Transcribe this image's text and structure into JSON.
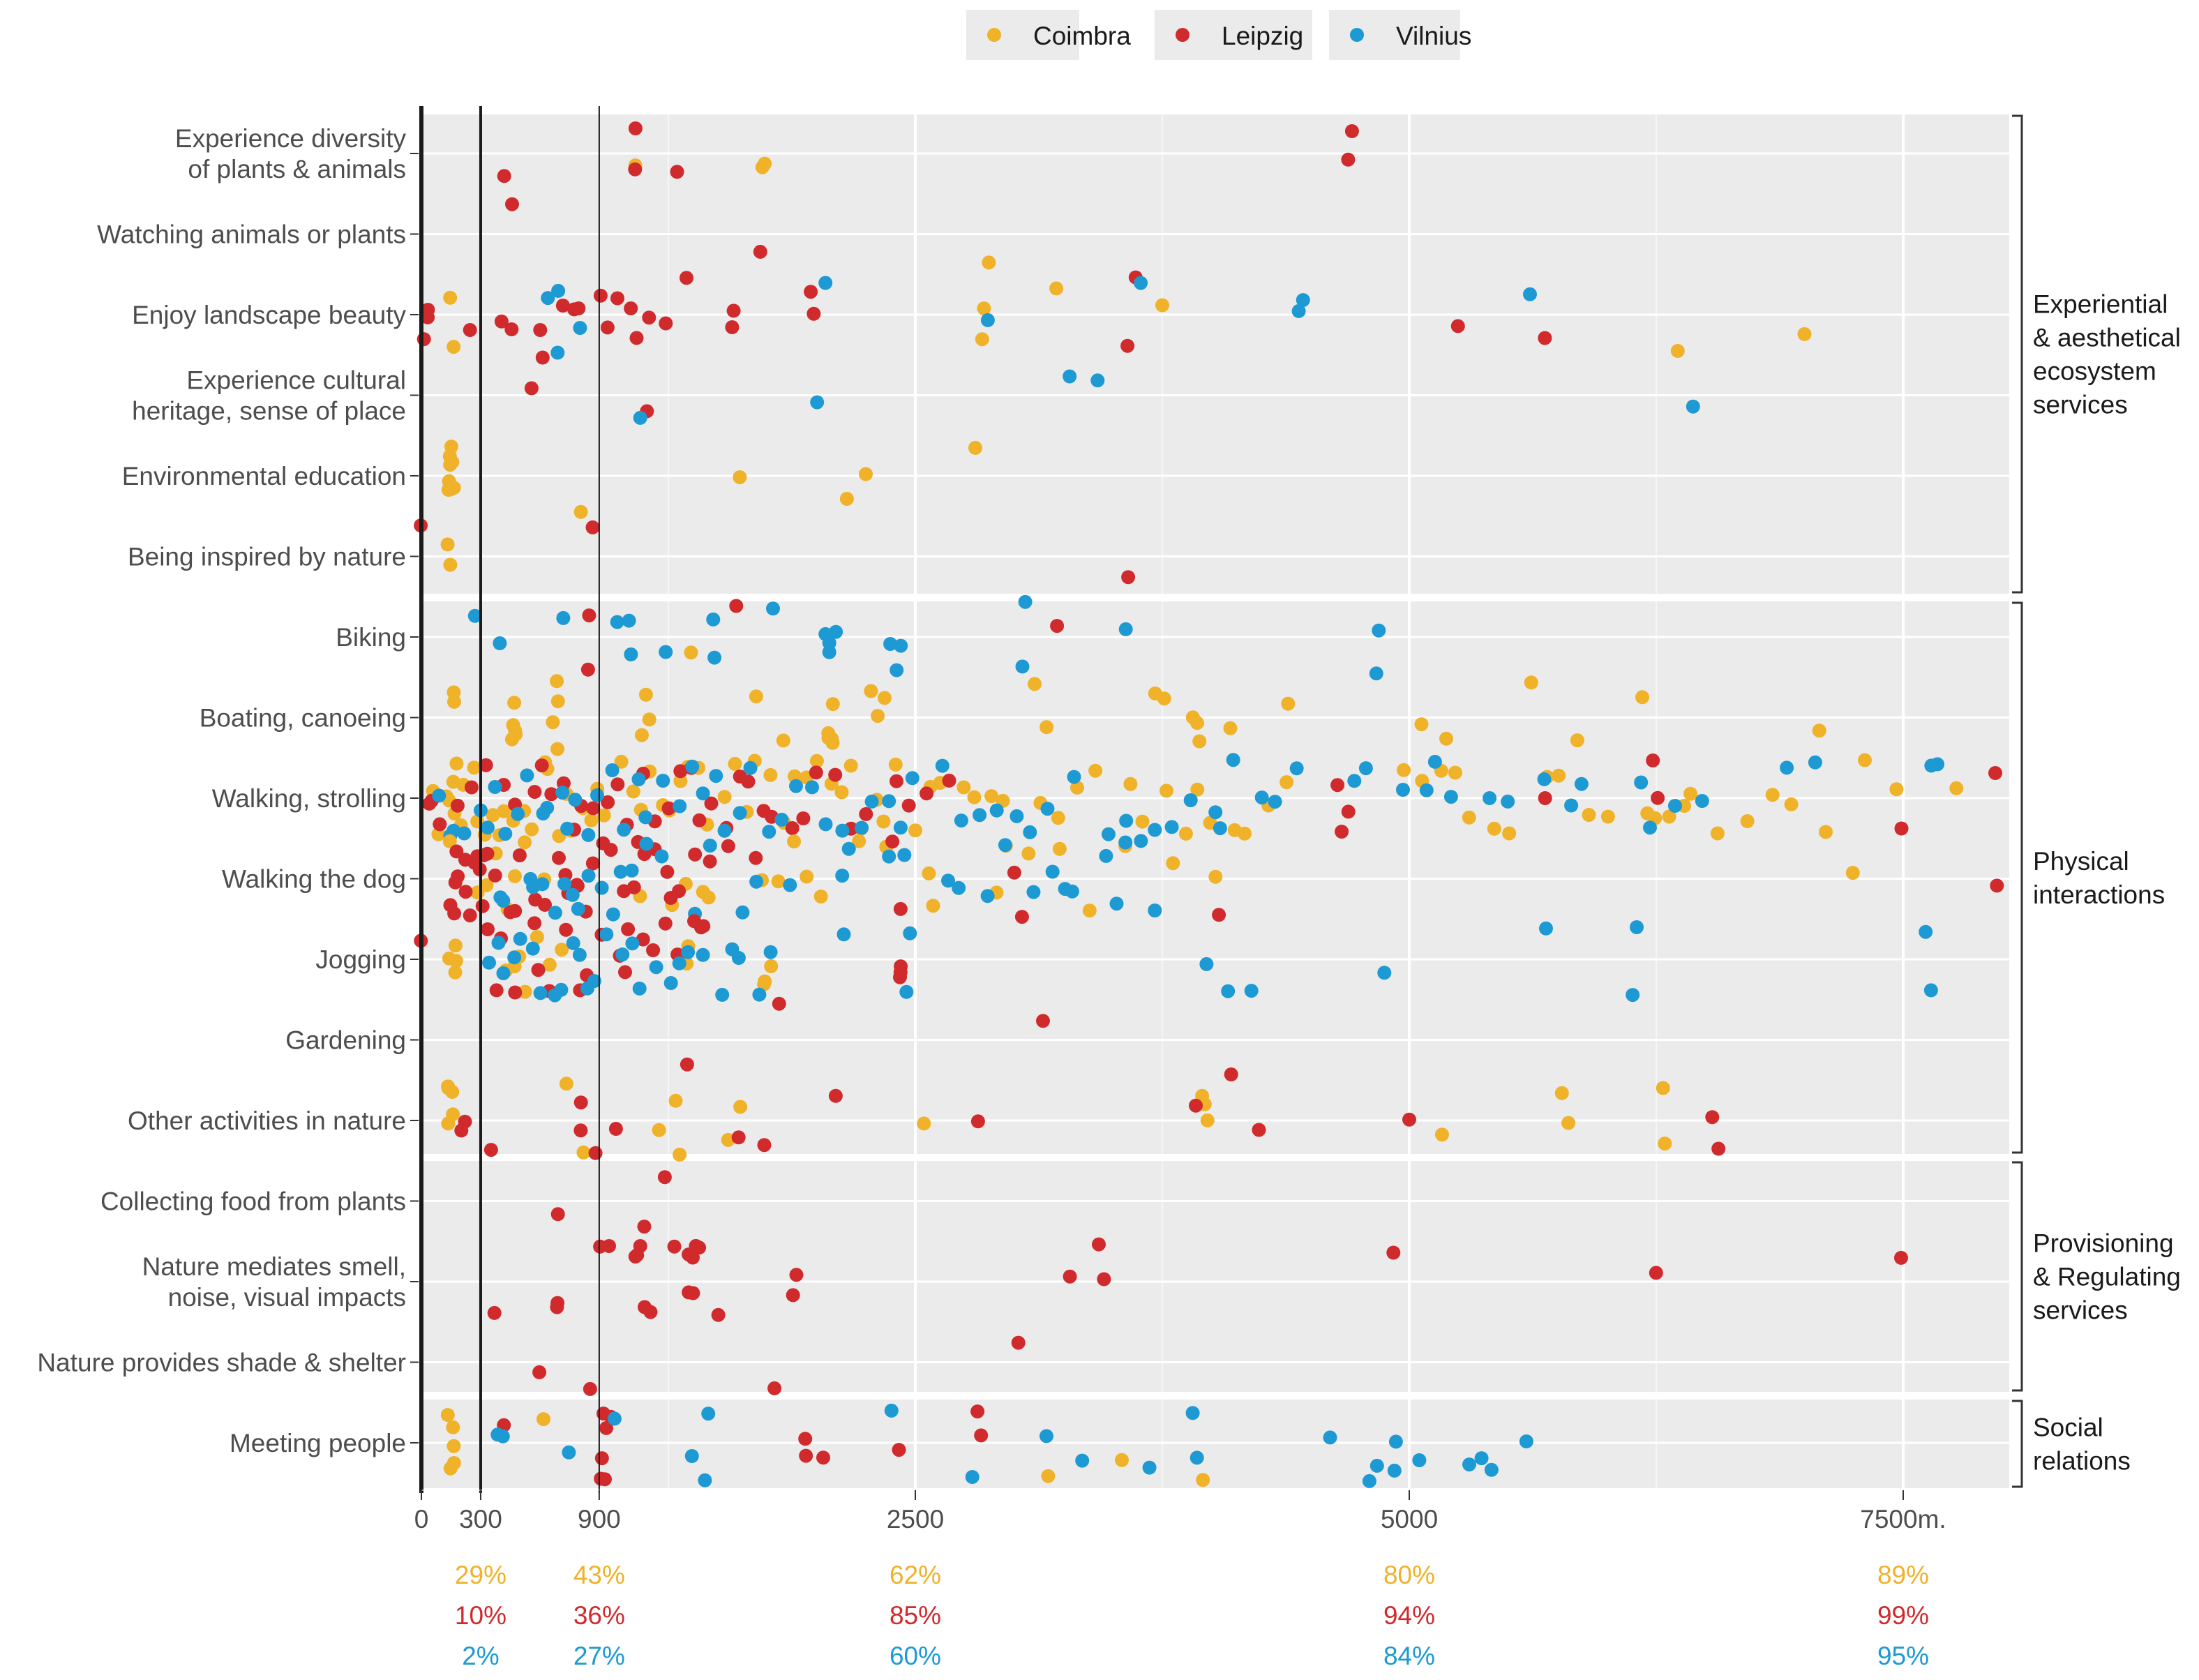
{
  "chart_data": {
    "type": "scatter",
    "x_unit_label": "m.",
    "xlim": [
      0,
      8000
    ],
    "x_ticks": [
      0,
      300,
      900,
      2500,
      5000,
      7500
    ],
    "x_tick_labels": [
      "0",
      "300",
      "900",
      "2500",
      "5000",
      "7500m."
    ],
    "reference_lines_x": [
      0,
      300,
      900
    ],
    "grid": true,
    "legend_position": "top",
    "series": [
      {
        "name": "Coimbra",
        "color": "#efb229"
      },
      {
        "name": "Leipzig",
        "color": "#d12a2d"
      },
      {
        "name": "Vilnius",
        "color": "#1d9ad3"
      }
    ],
    "categories": [
      {
        "label": "Experience diversity\nof plants & animals",
        "points": {
          "Coimbra": [
            1090,
            1720,
            1720
          ],
          "Leipzig": [
            1070,
            1070,
            1300,
            430,
            4700,
            4700
          ],
          "Vilnius": []
        }
      },
      {
        "label": "Watching animals or plants",
        "points": {
          "Coimbra": [
            2860
          ],
          "Leipzig": [
            460,
            1720
          ],
          "Vilnius": []
        }
      },
      {
        "label": "Enjoy landscape beauty",
        "points": {
          "Coimbra": [
            150,
            150,
            2850,
            2850,
            3220,
            3750,
            6360,
            7010
          ],
          "Leipzig": [
            20,
            20,
            20,
            260,
            420,
            460,
            610,
            720,
            780,
            790,
            920,
            960,
            1000,
            1070,
            1090,
            1140,
            1230,
            1340,
            1580,
            1580,
            1970,
            1970,
            3570,
            3610,
            5250,
            5680
          ],
          "Vilnius": [
            630,
            690,
            690,
            790,
            2860,
            2030,
            3650,
            4430,
            4450,
            5600
          ]
        }
      },
      {
        "label": "Experience cultural\nheritage, sense of place",
        "points": {
          "Coimbra": [],
          "Leipzig": [
            560,
            620,
            1130
          ],
          "Vilnius": [
            1090,
            1990,
            3440,
            3280,
            6430
          ]
        }
      },
      {
        "label": "Environmental education",
        "points": {
          "Coimbra": [
            150,
            150,
            150,
            150,
            150,
            150,
            150,
            150,
            150,
            800,
            1600,
            2160,
            2250,
            2790
          ],
          "Leipzig": [],
          "Vilnius": []
        }
      },
      {
        "label": "Being inspired by nature",
        "points": {
          "Coimbra": [
            150,
            150
          ],
          "Leipzig": [
            10,
            880,
            3570
          ],
          "Vilnius": []
        }
      },
      {
        "label": "Biking",
        "points": {
          "Coimbra": [
            1370
          ],
          "Leipzig": [
            850,
            850,
            1580,
            3200
          ],
          "Vilnius": [
            280,
            380,
            710,
            980,
            1050,
            1060,
            1230,
            1490,
            1500,
            1780,
            2050,
            2060,
            2070,
            2100,
            2380,
            2390,
            2430,
            3050,
            3060,
            3550,
            4850,
            4850
          ]
        }
      },
      {
        "label": "Boating, canoeing",
        "points": {
          "Coimbra": [
            150,
            150,
            460,
            460,
            460,
            460,
            460,
            680,
            680,
            680,
            680,
            1100,
            1140,
            1150,
            1680,
            1840,
            2070,
            2070,
            2070,
            2070,
            2070,
            2290,
            2350,
            2310,
            3110,
            3150,
            3730,
            3750,
            3900,
            3940,
            3940,
            4090,
            4400,
            5060,
            5190,
            5600,
            5840,
            6190,
            7060
          ],
          "Leipzig": [],
          "Vilnius": []
        }
      },
      {
        "label": "Walking, strolling",
        "points": {
          "Coimbra": [
            60,
            80,
            120,
            140,
            160,
            170,
            190,
            200,
            230,
            250,
            280,
            310,
            350,
            390,
            430,
            470,
            520,
            560,
            620,
            650,
            700,
            750,
            760,
            800,
            850,
            900,
            940,
            1000,
            1060,
            1120,
            1170,
            1220,
            1270,
            1320,
            1360,
            1410,
            1460,
            1520,
            1580,
            1650,
            1700,
            1760,
            1830,
            1890,
            1940,
            2010,
            2080,
            2130,
            2190,
            2240,
            2290,
            2350,
            2410,
            2490,
            2560,
            2640,
            2740,
            2800,
            2880,
            2960,
            3120,
            3210,
            3320,
            3410,
            3590,
            3650,
            3760,
            3870,
            3930,
            3990,
            4100,
            4180,
            4280,
            4380,
            4960,
            5080,
            5150,
            5250,
            5310,
            5440,
            5510,
            5700,
            5760,
            5910,
            6000,
            6190,
            6250,
            6330,
            6400,
            6440,
            6560,
            6700,
            6830,
            6950,
            7120,
            7310,
            7480,
            7770
          ],
          "Leipzig": [
            30,
            70,
            110,
            200,
            260,
            340,
            400,
            460,
            560,
            600,
            660,
            710,
            780,
            820,
            870,
            960,
            1000,
            1050,
            1120,
            1170,
            1240,
            1300,
            1360,
            1420,
            1470,
            1540,
            1600,
            1640,
            1720,
            1790,
            1860,
            1940,
            2010,
            2100,
            2180,
            2260,
            2400,
            2470,
            2560,
            2680,
            4650,
            4650,
            4680,
            5680,
            6240,
            6240,
            7480,
            7960
          ],
          "Vilnius": [
            90,
            130,
            180,
            230,
            290,
            330,
            380,
            420,
            480,
            540,
            600,
            640,
            700,
            730,
            790,
            840,
            890,
            960,
            1010,
            1090,
            1150,
            1220,
            1310,
            1370,
            1430,
            1490,
            1550,
            1600,
            1660,
            1750,
            1830,
            1900,
            1980,
            2060,
            2140,
            2220,
            2270,
            2350,
            2430,
            2500,
            2650,
            2740,
            2830,
            2920,
            3010,
            3090,
            3170,
            3320,
            3470,
            3570,
            3700,
            3790,
            3880,
            4010,
            4060,
            4110,
            4270,
            4330,
            4420,
            4710,
            4780,
            4980,
            5080,
            5140,
            5220,
            5400,
            5510,
            5680,
            5820,
            5880,
            6170,
            6230,
            6330,
            6480,
            6910,
            7040,
            7650,
            7660
          ]
        }
      },
      {
        "label": "Walking the dog",
        "points": {
          "Coimbra": [
            150,
            300,
            320,
            370,
            450,
            470,
            520,
            610,
            1120,
            1140,
            1280,
            1330,
            1420,
            1440,
            1740,
            1820,
            1900,
            1960,
            2040,
            2230,
            2350,
            2560,
            2590,
            2920,
            2950,
            3080,
            3220,
            3390,
            3580,
            3790,
            4030,
            7240
          ],
          "Leipzig": [
            150,
            170,
            180,
            180,
            200,
            210,
            220,
            250,
            260,
            280,
            290,
            310,
            320,
            350,
            380,
            440,
            480,
            510,
            560,
            620,
            690,
            720,
            760,
            780,
            790,
            840,
            880,
            910,
            950,
            1010,
            1080,
            1110,
            1140,
            1180,
            1250,
            1270,
            1300,
            1400,
            1460,
            1540,
            1680,
            2400,
            2420,
            3010,
            3030,
            4020,
            7960
          ],
          "Vilnius": [
            390,
            430,
            560,
            580,
            620,
            690,
            720,
            750,
            800,
            850,
            910,
            960,
            1020,
            1060,
            1130,
            1200,
            1380,
            1450,
            1640,
            1690,
            1870,
            2130,
            2180,
            2350,
            2440,
            2660,
            2720,
            2860,
            2950,
            3100,
            3180,
            3260,
            3310,
            3470,
            3520,
            3560,
            3640,
            3700
          ]
        }
      },
      {
        "label": "Jogging",
        "points": {
          "Coimbra": [
            150,
            160,
            170,
            180,
            420,
            470,
            510,
            530,
            570,
            660,
            700,
            1340,
            1350,
            1730,
            1740,
            1760
          ],
          "Leipzig": [
            5,
            340,
            380,
            420,
            480,
            560,
            580,
            650,
            730,
            800,
            840,
            900,
            1000,
            1040,
            1060,
            1110,
            1160,
            1220,
            1300,
            1380,
            1420,
            1440,
            2410,
            2430,
            2440
          ],
          "Vilnius": [
            330,
            380,
            430,
            480,
            510,
            560,
            610,
            660,
            710,
            760,
            800,
            840,
            880,
            950,
            1010,
            1060,
            1120,
            1190,
            1250,
            1320,
            1360,
            1420,
            1520,
            1580,
            1610,
            1700,
            1770,
            2140,
            2460,
            2470,
            3960,
            4090,
            4190,
            4880,
            5700,
            6140,
            6150,
            7620,
            7640
          ]
        }
      },
      {
        "label": "Gardening",
        "points": {
          "Coimbra": [],
          "Leipzig": [
            1350,
            1810,
            3130,
            4090
          ],
          "Vilnius": []
        }
      },
      {
        "label": "Other activities in nature",
        "points": {
          "Coimbra": [
            150,
            150,
            150,
            150,
            150,
            730,
            810,
            1220,
            1290,
            1300,
            1560,
            1630,
            2540,
            3950,
            3960,
            3980,
            5180,
            5770,
            5800,
            6270,
            6300
          ],
          "Leipzig": [
            220,
            230,
            370,
            790,
            810,
            1000,
            890,
            1600,
            1720,
            2100,
            2810,
            3910,
            4230,
            5010,
            6550,
            6550
          ],
          "Vilnius": []
        }
      },
      {
        "label": "Collecting food from plants",
        "points": {
          "Coimbra": [],
          "Leipzig": [
            700,
            1140,
            1230
          ],
          "Vilnius": []
        }
      },
      {
        "label": "Nature mediates smell,\nnoise, visual impacts",
        "points": {
          "Coimbra": [],
          "Leipzig": [
            360,
            690,
            700,
            920,
            940,
            1090,
            1100,
            1100,
            1140,
            1150,
            1270,
            1370,
            1370,
            1380,
            1390,
            1390,
            1390,
            1490,
            1880,
            1900,
            3280,
            3440,
            3460,
            4930,
            6250,
            7490
          ],
          "Vilnius": []
        }
      },
      {
        "label": "Nature provides shade & shelter",
        "points": {
          "Coimbra": [],
          "Leipzig": [
            610,
            870,
            1770,
            3010
          ],
          "Vilnius": []
        }
      },
      {
        "label": "Meeting people",
        "points": {
          "Coimbra": [
            150,
            150,
            150,
            150,
            150,
            630,
            3160,
            3560,
            3960
          ],
          "Leipzig": [
            400,
            900,
            920,
            920,
            920,
            920,
            960,
            1950,
            1960,
            2040,
            2420,
            2810,
            2830
          ],
          "Vilnius": [
            400,
            420,
            730,
            990,
            1370,
            1440,
            1440,
            2390,
            2800,
            3150,
            3360,
            3700,
            3900,
            3930,
            4610,
            4810,
            4830,
            4930,
            4950,
            5060,
            5320,
            5360,
            5420,
            5590
          ]
        }
      }
    ],
    "groups": [
      {
        "label": "Experiential\n& aesthetical\necosystem\nservices",
        "from": 0,
        "to": 5
      },
      {
        "label": "Physical\ninteractions",
        "from": 6,
        "to": 12
      },
      {
        "label": "Provisioning\n& Regulating\nservices",
        "from": 13,
        "to": 15
      },
      {
        "label": "Social\nrelations",
        "from": 16,
        "to": 16
      }
    ],
    "percent_table": [
      {
        "x": 300,
        "Coimbra": "29%",
        "Leipzig": "10%",
        "Vilnius": "2%"
      },
      {
        "x": 900,
        "Coimbra": "43%",
        "Leipzig": "36%",
        "Vilnius": "27%"
      },
      {
        "x": 2500,
        "Coimbra": "62%",
        "Leipzig": "85%",
        "Vilnius": "60%"
      },
      {
        "x": 5000,
        "Coimbra": "80%",
        "Leipzig": "94%",
        "Vilnius": "84%"
      },
      {
        "x": 7500,
        "Coimbra": "89%",
        "Leipzig": "99%",
        "Vilnius": "95%"
      }
    ]
  }
}
